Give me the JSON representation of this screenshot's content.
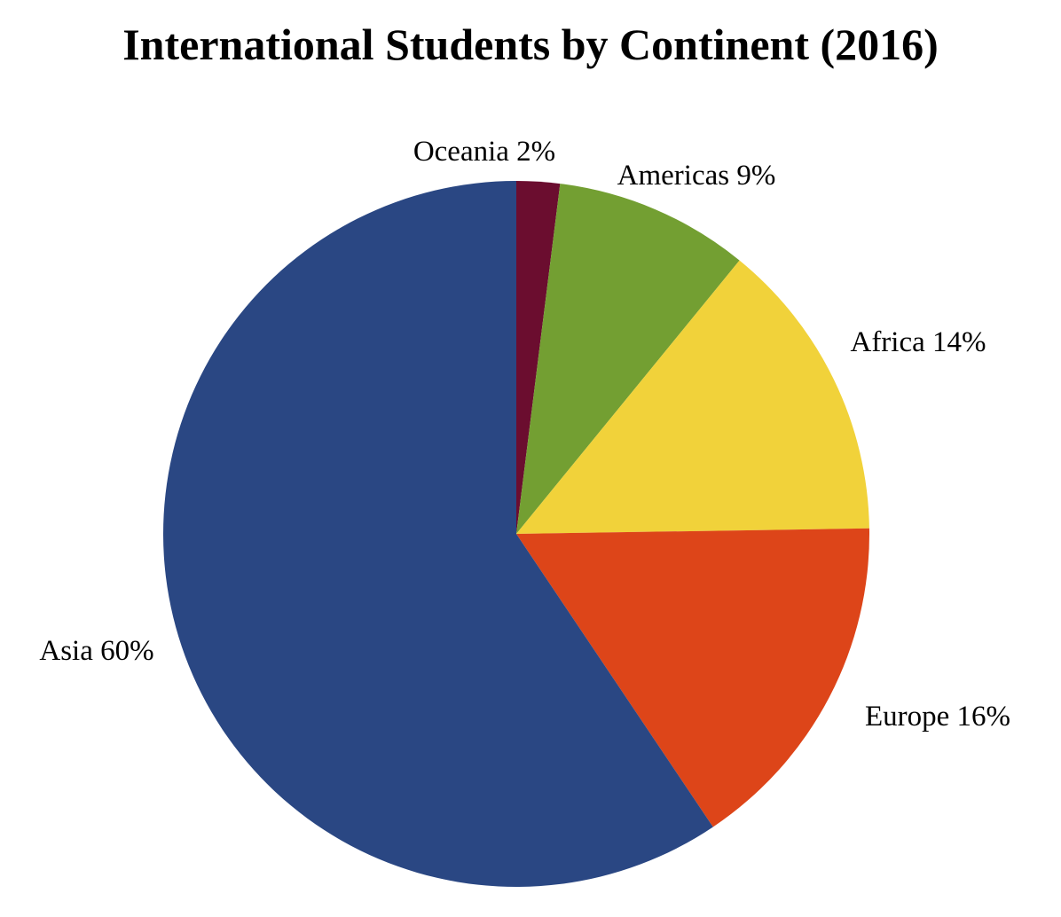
{
  "chart_data": {
    "type": "pie",
    "title": "International Students by Continent (2016)",
    "start_angle_deg": 0,
    "direction": "clockwise",
    "slices": [
      {
        "name": "Oceania",
        "value": 2,
        "label": "Oceania 2%",
        "color": "#6B0D2F"
      },
      {
        "name": "Americas",
        "value": 9,
        "label": "Americas 9%",
        "color": "#739F32"
      },
      {
        "name": "Africa",
        "value": 14,
        "label": "Africa 14%",
        "color": "#F1D23A"
      },
      {
        "name": "Europe",
        "value": 16,
        "label": "Europe 16%",
        "color": "#DD4519"
      },
      {
        "name": "Asia",
        "value": 60,
        "label": "Asia 60%",
        "color": "#2A4783"
      }
    ]
  }
}
